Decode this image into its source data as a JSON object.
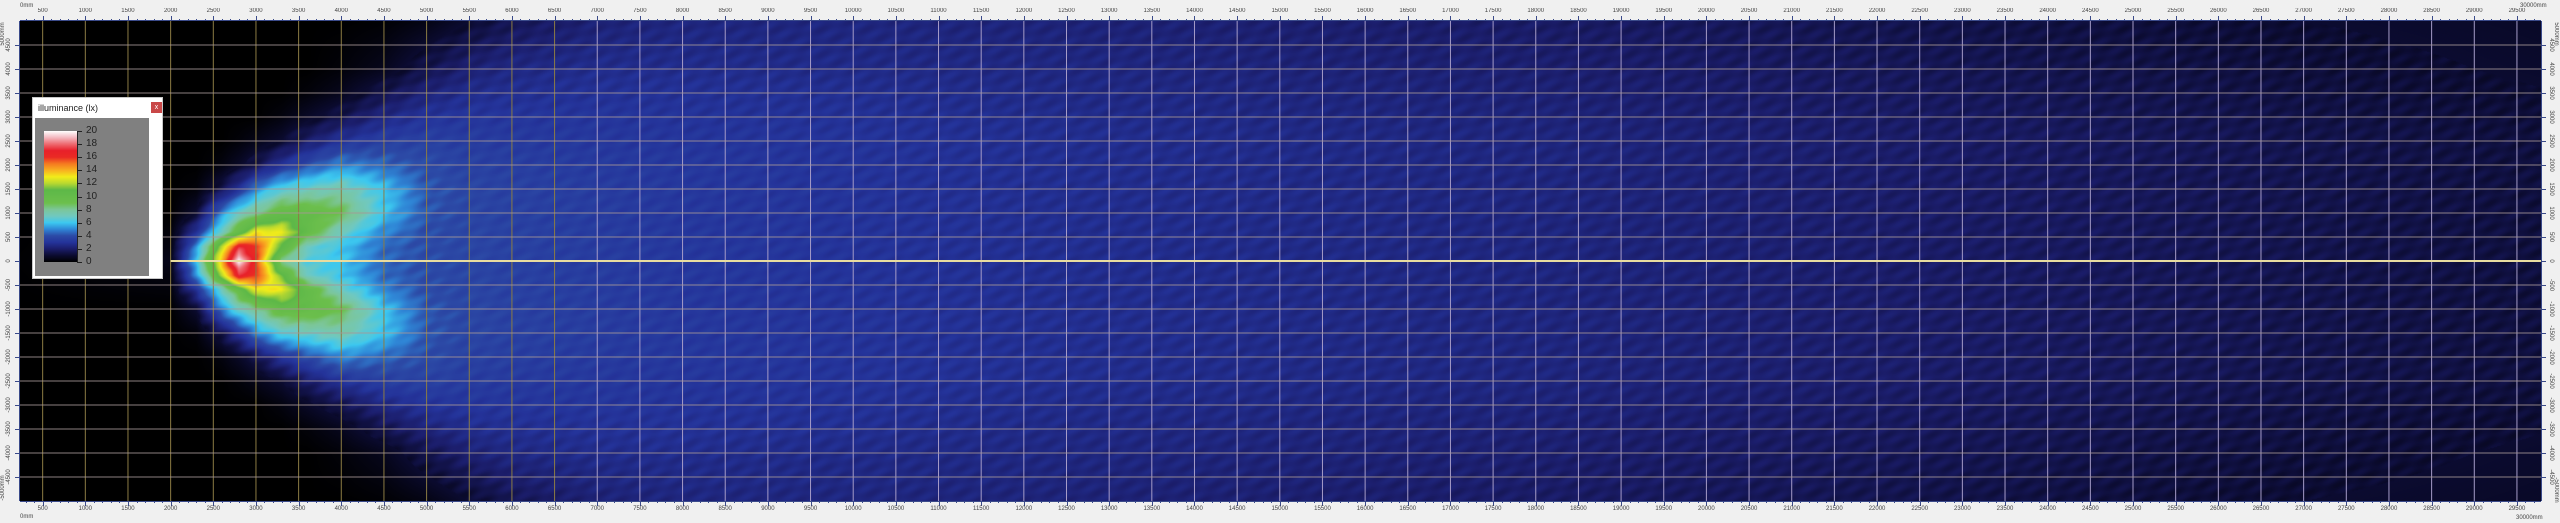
{
  "legend": {
    "title": "illuminance (lx)",
    "close_label": "x",
    "ticks": [
      "0",
      "2",
      "4",
      "6",
      "8",
      "10",
      "12",
      "14",
      "16",
      "18",
      "20"
    ]
  },
  "rulers": {
    "x_start_label": "0mm",
    "x_end_label": "30000mm",
    "y_top_label": "5000mm",
    "y_bottom_label": "-5000mm"
  },
  "colors": {
    "background": "#f0f0f0",
    "grid_dark": "#8c7c44",
    "grid_lit": "#a69cc8",
    "center_line": "#e8dca0",
    "close_button": "#c94848"
  },
  "chart_data": {
    "type": "heatmap",
    "title": "illuminance (lx)",
    "unit_x": "mm",
    "unit_y": "mm",
    "xlim": [
      0,
      30000
    ],
    "ylim": [
      -5000,
      5000
    ],
    "zlim": [
      0,
      20
    ],
    "grid": true,
    "grid_step": 500,
    "legend_position": "top-left",
    "xticks": [
      "500",
      "1000",
      "1500",
      "2000",
      "2500",
      "3000",
      "3500",
      "4000",
      "4500",
      "5000",
      "5500",
      "6000",
      "6500",
      "7000",
      "7500",
      "8000",
      "8500",
      "9000",
      "9500",
      "10000",
      "10500",
      "11000",
      "11500",
      "12000",
      "12500",
      "13000",
      "13500",
      "14000",
      "14500",
      "15000",
      "15500",
      "16000",
      "16500",
      "17000",
      "17500",
      "18000",
      "18500",
      "19000",
      "19500",
      "20000",
      "20500",
      "21000",
      "21500",
      "22000",
      "22500",
      "23000",
      "23500",
      "24000",
      "24500",
      "25000",
      "25500",
      "26000",
      "26500",
      "27000",
      "27500",
      "28000",
      "28500",
      "29000",
      "29500"
    ],
    "yticks": [
      "4500",
      "4000",
      "3500",
      "3000",
      "2500",
      "2000",
      "1500",
      "1000",
      "500",
      "0",
      "-500",
      "-1000",
      "-1500",
      "-2000",
      "-2500",
      "-3000",
      "-3500",
      "-4000",
      "-4500"
    ],
    "colorscale": [
      [
        0,
        "#000000"
      ],
      [
        1,
        "#0b0b30"
      ],
      [
        2,
        "#1b1d6a"
      ],
      [
        3,
        "#24339a"
      ],
      [
        4,
        "#2c4aa6"
      ],
      [
        5,
        "#2f86d6"
      ],
      [
        6,
        "#3cc8f0"
      ],
      [
        7,
        "#70c8c0"
      ],
      [
        8,
        "#7cc69a"
      ],
      [
        9,
        "#6cbf4c"
      ],
      [
        11,
        "#5db848"
      ],
      [
        12,
        "#b8d830"
      ],
      [
        13,
        "#f2ec1a"
      ],
      [
        14,
        "#f8b020"
      ],
      [
        15,
        "#f57a20"
      ],
      [
        16,
        "#ea2a24"
      ],
      [
        17,
        "#e8202a"
      ],
      [
        18,
        "#ee6a70"
      ],
      [
        19,
        "#f4b8c0"
      ],
      [
        20,
        "#ffffff"
      ]
    ],
    "x": [
      0,
      2000,
      2300,
      2600,
      2800,
      3000,
      3300,
      3600,
      4000,
      4500,
      5000,
      5500,
      6000,
      7000,
      8000,
      10000,
      12000,
      15000,
      18000,
      21000,
      24000,
      27000,
      30000
    ],
    "y": [
      5000,
      4000,
      3500,
      3000,
      2500,
      2000,
      1500,
      1000,
      600,
      300,
      0,
      -300,
      -600,
      -1000,
      -1500,
      -2000,
      -2500,
      -3000,
      -3500,
      -4000,
      -5000
    ],
    "z": [
      [
        0,
        0,
        0,
        0,
        0,
        0,
        0,
        0,
        0,
        0.1,
        0.4,
        1,
        1.6,
        2.2,
        2.4,
        2.4,
        2.3,
        2.1,
        1.9,
        1.6,
        1.3,
        1.0,
        0.8
      ],
      [
        0,
        0,
        0,
        0,
        0,
        0,
        0,
        0,
        0.2,
        0.6,
        1.5,
        2.2,
        2.5,
        2.7,
        2.7,
        2.6,
        2.5,
        2.3,
        2.1,
        1.8,
        1.5,
        1.2,
        0.9
      ],
      [
        0,
        0,
        0,
        0,
        0,
        0,
        0,
        0.2,
        0.6,
        1.5,
        2.3,
        2.7,
        2.8,
        2.9,
        2.9,
        2.8,
        2.6,
        2.4,
        2.2,
        1.9,
        1.6,
        1.3,
        1.0
      ],
      [
        0,
        0,
        0,
        0,
        0,
        0,
        0.3,
        0.8,
        1.5,
        2.5,
        3,
        3.1,
        3.1,
        3.1,
        3,
        2.9,
        2.7,
        2.5,
        2.3,
        2,
        1.7,
        1.4,
        1.1
      ],
      [
        0,
        0,
        0,
        0,
        0.2,
        0.5,
        1,
        2,
        3,
        3.5,
        3.6,
        3.4,
        3.3,
        3.2,
        3.1,
        3,
        2.8,
        2.6,
        2.4,
        2.1,
        1.8,
        1.5,
        1.2
      ],
      [
        0,
        0,
        0,
        0.3,
        0.8,
        1.5,
        3,
        4,
        5,
        4.5,
        4,
        3.6,
        3.5,
        3.3,
        3.2,
        3,
        2.8,
        2.6,
        2.4,
        2.1,
        1.8,
        1.5,
        1.2
      ],
      [
        0,
        0,
        0.2,
        1.5,
        3,
        5,
        6.5,
        7,
        7.5,
        6,
        4.2,
        3.8,
        3.6,
        3.4,
        3.2,
        3,
        2.8,
        2.6,
        2.4,
        2.1,
        1.8,
        1.5,
        1.2
      ],
      [
        0,
        0,
        1,
        5,
        7,
        8,
        10,
        10,
        9,
        6,
        4.2,
        3.8,
        3.6,
        3.4,
        3.2,
        3,
        2.8,
        2.6,
        2.4,
        2.1,
        1.8,
        1.5,
        1.2
      ],
      [
        0,
        0.2,
        3,
        7,
        10,
        13,
        13,
        10,
        7,
        5,
        4,
        3.8,
        3.6,
        3.4,
        3.2,
        3,
        2.8,
        2.6,
        2.4,
        2.1,
        1.8,
        1.5,
        1.2
      ],
      [
        0,
        0.3,
        5,
        12,
        17,
        16,
        11,
        7,
        6,
        4.5,
        4,
        3.8,
        3.6,
        3.4,
        3.2,
        3,
        2.8,
        2.6,
        2.4,
        2.1,
        1.8,
        1.5,
        1.2
      ],
      [
        0,
        0.5,
        6,
        14,
        20,
        16,
        8,
        6.5,
        6,
        4.5,
        4,
        3.8,
        3.6,
        3.4,
        3.2,
        3,
        2.8,
        2.6,
        2.4,
        2.1,
        1.8,
        1.5,
        1.2
      ],
      [
        0,
        0.3,
        5,
        12,
        17,
        16,
        11,
        7,
        6,
        4.5,
        4,
        3.8,
        3.6,
        3.4,
        3.2,
        3,
        2.8,
        2.6,
        2.4,
        2.1,
        1.8,
        1.5,
        1.2
      ],
      [
        0,
        0.2,
        3,
        7,
        10,
        13,
        13,
        10,
        7,
        5,
        4,
        3.8,
        3.6,
        3.4,
        3.2,
        3,
        2.8,
        2.6,
        2.4,
        2.1,
        1.8,
        1.5,
        1.2
      ],
      [
        0,
        0,
        1,
        5,
        7,
        8,
        10,
        10,
        9,
        6,
        4.2,
        3.8,
        3.6,
        3.4,
        3.2,
        3,
        2.8,
        2.6,
        2.4,
        2.1,
        1.8,
        1.5,
        1.2
      ],
      [
        0,
        0,
        0.2,
        1.5,
        3,
        5,
        6.5,
        7,
        7.5,
        6,
        4.2,
        3.8,
        3.6,
        3.4,
        3.2,
        3,
        2.8,
        2.6,
        2.4,
        2.1,
        1.8,
        1.5,
        1.2
      ],
      [
        0,
        0,
        0,
        0.3,
        0.8,
        1.5,
        3,
        4,
        5,
        4.5,
        4,
        3.6,
        3.5,
        3.3,
        3.2,
        3,
        2.8,
        2.6,
        2.4,
        2.1,
        1.8,
        1.5,
        1.2
      ],
      [
        0,
        0,
        0,
        0,
        0.2,
        0.5,
        1,
        2,
        3,
        3.5,
        3.6,
        3.4,
        3.3,
        3.2,
        3.1,
        3,
        2.8,
        2.6,
        2.4,
        2.1,
        1.8,
        1.5,
        1.2
      ],
      [
        0,
        0,
        0,
        0,
        0,
        0,
        0.3,
        0.8,
        1.5,
        2.5,
        3,
        3.1,
        3.1,
        3.1,
        3,
        2.9,
        2.7,
        2.5,
        2.3,
        2,
        1.7,
        1.4,
        1.1
      ],
      [
        0,
        0,
        0,
        0,
        0,
        0,
        0,
        0.2,
        0.6,
        1.5,
        2.3,
        2.7,
        2.8,
        2.9,
        2.9,
        2.8,
        2.6,
        2.4,
        2.2,
        1.9,
        1.6,
        1.3,
        1.0
      ],
      [
        0,
        0,
        0,
        0,
        0,
        0,
        0,
        0,
        0.2,
        0.6,
        1.5,
        2.2,
        2.5,
        2.7,
        2.7,
        2.6,
        2.5,
        2.3,
        2.1,
        1.8,
        1.5,
        1.2,
        0.9
      ],
      [
        0,
        0,
        0,
        0,
        0,
        0,
        0,
        0,
        0,
        0.1,
        0.4,
        1,
        1.6,
        2.2,
        2.4,
        2.4,
        2.3,
        2.1,
        1.9,
        1.6,
        1.3,
        1.0,
        0.8
      ]
    ]
  }
}
